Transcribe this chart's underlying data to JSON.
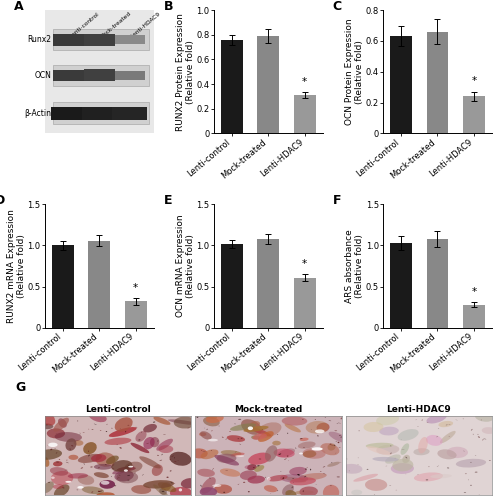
{
  "categories": [
    "Lenti-control",
    "Mock-treated",
    "Lenti-HDAC9"
  ],
  "bar_colors_dark": [
    "#1a1a1a",
    "#888888",
    "#999999"
  ],
  "B_values": [
    0.76,
    0.79,
    0.31
  ],
  "B_errors": [
    0.04,
    0.06,
    0.025
  ],
  "B_ylabel": "RUNX2 Protein Expression\n(Relative fold)",
  "B_ylim": [
    0,
    1.0
  ],
  "B_yticks": [
    0.0,
    0.2,
    0.4,
    0.6,
    0.8,
    1.0
  ],
  "C_values": [
    0.63,
    0.66,
    0.24
  ],
  "C_errors": [
    0.065,
    0.08,
    0.03
  ],
  "C_ylabel": "OCN Protein Expression\n(Relative fold)",
  "C_ylim": [
    0,
    0.8
  ],
  "C_yticks": [
    0.0,
    0.2,
    0.4,
    0.6,
    0.8
  ],
  "D_values": [
    1.0,
    1.06,
    0.32
  ],
  "D_errors": [
    0.05,
    0.07,
    0.04
  ],
  "D_ylabel": "RUNX2 mRNA Expression\n(Relative fold)",
  "D_ylim": [
    0,
    1.5
  ],
  "D_yticks": [
    0.0,
    0.5,
    1.0,
    1.5
  ],
  "E_values": [
    1.02,
    1.08,
    0.61
  ],
  "E_errors": [
    0.05,
    0.06,
    0.04
  ],
  "E_ylabel": "OCN mRNA Expression\n(Relative fold)",
  "E_ylim": [
    0,
    1.5
  ],
  "E_yticks": [
    0.0,
    0.5,
    1.0,
    1.5
  ],
  "F_values": [
    1.03,
    1.08,
    0.28
  ],
  "F_errors": [
    0.08,
    0.1,
    0.03
  ],
  "F_ylabel": "ARS absorbance\n(Relative fold)",
  "F_ylim": [
    0,
    1.5
  ],
  "F_yticks": [
    0.0,
    0.5,
    1.0,
    1.5
  ],
  "wb_proteins": [
    "Runx2",
    "OCN",
    "β-Actin"
  ],
  "wb_groups": [
    "Lenti-control",
    "Mock-treated",
    "Lenti-HDAC9"
  ],
  "tick_fontsize": 6.0,
  "label_fontsize": 6.5,
  "panel_label_fontsize": 9,
  "xticklabel_rotation": 40,
  "bg_color": "#ffffff",
  "G_labels": [
    "Lenti-control",
    "Mock-treated",
    "Lenti-HDAC9"
  ]
}
